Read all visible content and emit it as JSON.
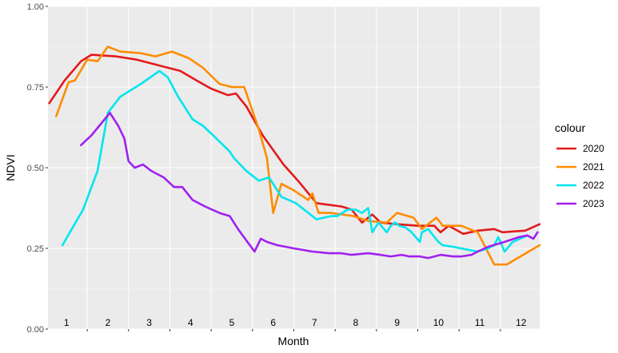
{
  "chart_data": {
    "type": "line",
    "xlabel": "Month",
    "ylabel": "NDVI",
    "xlim": [
      0.55,
      12.45
    ],
    "ylim": [
      0.0,
      1.0
    ],
    "y_ticks": [
      "0.00",
      "0.25",
      "0.50",
      "0.75",
      "1.00"
    ],
    "month_labels": [
      "1",
      "2",
      "3",
      "4",
      "5",
      "6",
      "7",
      "8",
      "9",
      "10",
      "11",
      "12"
    ],
    "grid": true,
    "legend_position": "right",
    "legend_title": "colour",
    "series": [
      {
        "name": "2020",
        "color": "#e31a1c",
        "x": [
          0.58,
          0.95,
          1.35,
          1.6,
          2.2,
          2.7,
          3.3,
          3.75,
          4.15,
          4.5,
          4.9,
          5.1,
          5.35,
          5.75,
          6.25,
          6.6,
          7.05,
          7.65,
          7.9,
          8.15,
          8.4,
          8.6,
          9.0,
          9.5,
          9.9,
          10.05,
          10.25,
          10.6,
          10.95,
          11.35,
          11.55,
          12.1,
          12.45
        ],
        "y": [
          0.7,
          0.77,
          0.83,
          0.85,
          0.845,
          0.835,
          0.815,
          0.8,
          0.77,
          0.745,
          0.725,
          0.73,
          0.69,
          0.6,
          0.51,
          0.46,
          0.39,
          0.38,
          0.37,
          0.33,
          0.355,
          0.33,
          0.325,
          0.32,
          0.32,
          0.3,
          0.32,
          0.295,
          0.305,
          0.31,
          0.3,
          0.305,
          0.325
        ]
      },
      {
        "name": "2021",
        "color": "#ff8c00",
        "x": [
          0.75,
          1.05,
          1.2,
          1.5,
          1.75,
          2.0,
          2.3,
          2.8,
          3.15,
          3.55,
          3.95,
          4.3,
          4.7,
          5.0,
          5.3,
          5.65,
          5.85,
          6.0,
          6.2,
          6.5,
          6.85,
          6.95,
          7.1,
          7.4,
          7.95,
          8.3,
          8.75,
          9.0,
          9.4,
          9.6,
          9.95,
          10.05,
          10.1,
          10.55,
          10.95,
          11.35,
          11.65,
          12.45
        ],
        "y": [
          0.66,
          0.765,
          0.77,
          0.835,
          0.83,
          0.875,
          0.86,
          0.855,
          0.845,
          0.86,
          0.84,
          0.81,
          0.76,
          0.75,
          0.75,
          0.62,
          0.53,
          0.36,
          0.45,
          0.43,
          0.4,
          0.42,
          0.36,
          0.36,
          0.35,
          0.335,
          0.33,
          0.36,
          0.345,
          0.31,
          0.345,
          0.33,
          0.32,
          0.32,
          0.3,
          0.2,
          0.2,
          0.26
        ]
      },
      {
        "name": "2022",
        "color": "#00e5ee",
        "x": [
          0.9,
          1.4,
          1.75,
          2.0,
          2.3,
          2.8,
          3.25,
          3.45,
          3.7,
          4.05,
          4.3,
          4.55,
          4.95,
          5.05,
          5.35,
          5.65,
          5.9,
          6.2,
          6.55,
          6.95,
          7.05,
          7.4,
          7.55,
          7.8,
          8.0,
          8.15,
          8.3,
          8.4,
          8.55,
          8.75,
          8.85,
          8.95,
          9.05,
          9.2,
          9.35,
          9.55,
          9.6,
          9.75,
          10.0,
          10.1,
          10.35,
          10.55,
          10.75,
          10.95,
          11.2,
          11.35,
          11.45,
          11.6,
          11.8,
          12.15
        ],
        "y": [
          0.26,
          0.37,
          0.49,
          0.67,
          0.72,
          0.76,
          0.8,
          0.78,
          0.72,
          0.65,
          0.63,
          0.6,
          0.55,
          0.53,
          0.49,
          0.46,
          0.47,
          0.41,
          0.39,
          0.35,
          0.34,
          0.35,
          0.35,
          0.37,
          0.37,
          0.36,
          0.375,
          0.3,
          0.33,
          0.3,
          0.32,
          0.33,
          0.32,
          0.315,
          0.3,
          0.27,
          0.3,
          0.31,
          0.27,
          0.26,
          0.255,
          0.25,
          0.245,
          0.24,
          0.25,
          0.26,
          0.285,
          0.24,
          0.27,
          0.29
        ]
      },
      {
        "name": "2023",
        "color": "#a020f0",
        "x": [
          1.35,
          1.6,
          2.05,
          2.25,
          2.4,
          2.5,
          2.65,
          2.85,
          3.05,
          3.35,
          3.6,
          3.8,
          4.05,
          4.35,
          4.7,
          4.95,
          5.15,
          5.55,
          5.7,
          5.85,
          6.1,
          6.5,
          6.95,
          7.35,
          7.65,
          7.9,
          8.3,
          8.6,
          8.85,
          9.1,
          9.3,
          9.55,
          9.75,
          10.05,
          10.35,
          10.55,
          10.8,
          10.95,
          11.2,
          11.6,
          11.95,
          12.15,
          12.3,
          12.4
        ],
        "y": [
          0.57,
          0.6,
          0.67,
          0.63,
          0.59,
          0.52,
          0.5,
          0.51,
          0.49,
          0.47,
          0.44,
          0.44,
          0.4,
          0.38,
          0.36,
          0.35,
          0.31,
          0.24,
          0.28,
          0.27,
          0.26,
          0.25,
          0.24,
          0.235,
          0.235,
          0.23,
          0.235,
          0.23,
          0.225,
          0.23,
          0.225,
          0.225,
          0.22,
          0.23,
          0.225,
          0.225,
          0.23,
          0.24,
          0.255,
          0.27,
          0.285,
          0.29,
          0.28,
          0.3
        ]
      }
    ]
  }
}
